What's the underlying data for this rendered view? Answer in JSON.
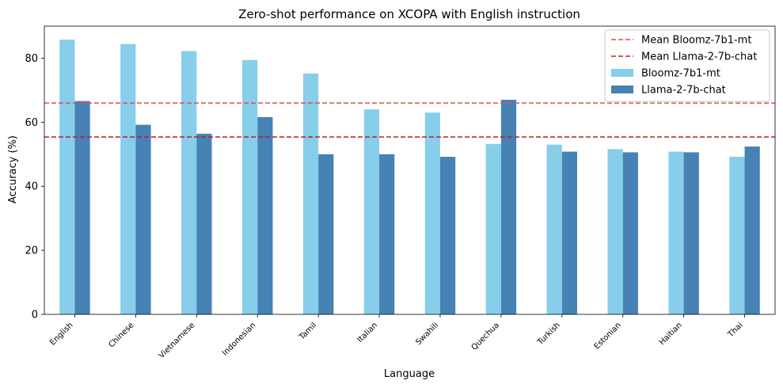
{
  "chart_data": {
    "type": "bar",
    "title": "Zero-shot performance on XCOPA with English instruction",
    "xlabel": "Language",
    "ylabel": "Accuracy (%)",
    "ylim": [
      0,
      90
    ],
    "yticks": [
      0,
      20,
      40,
      60,
      80
    ],
    "grid": false,
    "legend_position": "top-right",
    "categories": [
      "English",
      "Chinese",
      "Vietnamese",
      "Indonesian",
      "Tamil",
      "Italian",
      "Swahili",
      "Quechua",
      "Turkish",
      "Estonian",
      "Haitian",
      "Thai"
    ],
    "series": [
      {
        "name": "Bloomz-7b1-mt",
        "color": "#87ceeb",
        "values": [
          85.8,
          84.4,
          82.2,
          79.4,
          75.2,
          64.0,
          63.0,
          53.2,
          53.0,
          51.6,
          50.8,
          49.2
        ]
      },
      {
        "name": "Llama-2-7b-chat",
        "color": "#4682b4",
        "values": [
          66.6,
          59.2,
          56.4,
          61.6,
          50.0,
          50.0,
          49.2,
          67.0,
          50.8,
          50.6,
          50.6,
          52.4
        ]
      }
    ],
    "mean_lines": [
      {
        "name": "Mean Bloomz-7b1-mt",
        "value": 66.0,
        "color": "#d9534f"
      },
      {
        "name": "Mean Llama-2-7b-chat",
        "value": 55.4,
        "color": "#b22222"
      }
    ]
  }
}
